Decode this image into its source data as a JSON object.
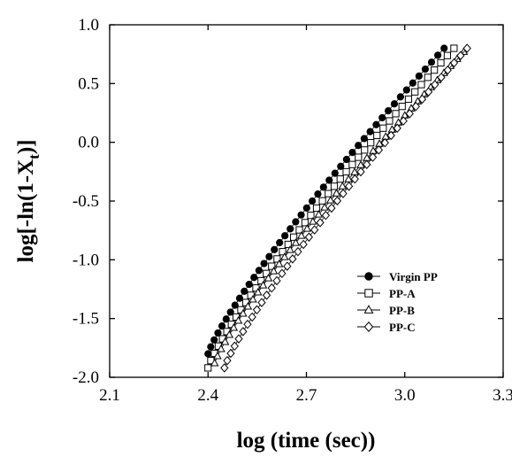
{
  "chart_data": {
    "type": "scatter",
    "xlabel": "log (time (sec))",
    "ylabel_parts": {
      "main": "log[-ln(1-X",
      "sub": "t",
      "end": ")]"
    },
    "xlim": [
      2.1,
      3.3
    ],
    "ylim": [
      -2.0,
      1.0
    ],
    "xticks": [
      "2.1",
      "2.4",
      "2.7",
      "3.0",
      "3.3"
    ],
    "yticks": [
      "1.0",
      "0.5",
      "0.0",
      "-0.5",
      "-1.0",
      "-1.5",
      "-2.0"
    ],
    "grid": false,
    "legend_position": "bottom-right",
    "series": [
      {
        "name": "Virgin PP",
        "marker": "filled-circle",
        "x_start": 2.4,
        "x_end": 3.12,
        "y_start": -1.8,
        "y_end": 0.8,
        "count": 45
      },
      {
        "name": "PP-A",
        "marker": "open-square",
        "x_start": 2.4,
        "x_end": 3.15,
        "y_start": -1.92,
        "y_end": 0.8,
        "count": 45
      },
      {
        "name": "PP-B",
        "marker": "open-triangle",
        "x_start": 2.42,
        "x_end": 3.18,
        "y_start": -1.88,
        "y_end": 0.77,
        "count": 45
      },
      {
        "name": "PP-C",
        "marker": "open-diamond",
        "x_start": 2.45,
        "x_end": 3.19,
        "y_start": -1.92,
        "y_end": 0.8,
        "count": 45
      }
    ]
  }
}
